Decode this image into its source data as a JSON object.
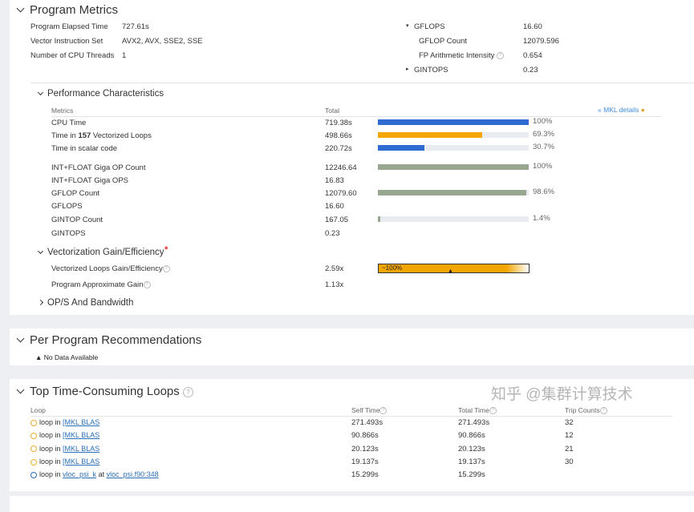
{
  "program_metrics": {
    "title": "Program Metrics",
    "left": [
      {
        "label": "Program Elapsed Time",
        "value": "727.61s"
      },
      {
        "label": "Vector Instruction Set",
        "value": "AVX2, AVX, SSE2, SSE"
      },
      {
        "label": "Number of CPU Threads",
        "value": "1"
      }
    ],
    "right": [
      {
        "label": "GFLOPS",
        "value": "16.60"
      },
      {
        "label": "GFLOP Count",
        "value": "12079.596"
      },
      {
        "label": "FP Arithmetic Intensity",
        "value": "0.654"
      },
      {
        "label": "GINTOPS",
        "value": "0.23"
      }
    ]
  },
  "performance": {
    "title": "Performance Characteristics",
    "col_metrics": "Metrics",
    "col_total": "Total",
    "mkl_link": "MKL details",
    "rows": [
      {
        "pre": "CPU Time",
        "bold": "",
        "post": "",
        "total": "719.38s",
        "pct": "100%",
        "fill": 100,
        "color": "#2f6bd1"
      },
      {
        "pre": "Time in ",
        "bold": "157",
        "post": " Vectorized Loops",
        "total": "498.66s",
        "pct": "69.3%",
        "fill": 69.3,
        "color": "#f5a500"
      },
      {
        "pre": "Time in scalar code",
        "bold": "",
        "post": "",
        "total": "220.72s",
        "pct": "30.7%",
        "fill": 30.7,
        "color": "#2f6bd1"
      },
      {
        "pre": "INT+FLOAT Giga OP Count",
        "bold": "",
        "post": "",
        "total": "12246.64",
        "pct": "100%",
        "fill": 100,
        "color": "#98a78f"
      },
      {
        "pre": "INT+FLOAT Giga OPS",
        "bold": "",
        "post": "",
        "total": "16.83",
        "pct": "",
        "fill": null,
        "color": ""
      },
      {
        "pre": "GFLOP Count",
        "bold": "",
        "post": "",
        "total": "12079.60",
        "pct": "98.6%",
        "fill": 98.6,
        "color": "#98a78f"
      },
      {
        "pre": "GFLOPS",
        "bold": "",
        "post": "",
        "total": "16.60",
        "pct": "",
        "fill": null,
        "color": ""
      },
      {
        "pre": "GINTOP Count",
        "bold": "",
        "post": "",
        "total": "167.05",
        "pct": "1.4%",
        "fill": 1.4,
        "color": "#98a78f"
      },
      {
        "pre": "GINTOPS",
        "bold": "",
        "post": "",
        "total": "0.23",
        "pct": "",
        "fill": null,
        "color": ""
      }
    ]
  },
  "vectorization": {
    "title": "Vectorization Gain/Efficiency",
    "rows": [
      {
        "label": "Vectorized Loops Gain/Efficiency",
        "value": "2.59x",
        "bar_label": "~100%",
        "efficiency": 100
      },
      {
        "label": "Program Approximate Gain",
        "value": "1.13x"
      }
    ]
  },
  "ops_bandwidth": {
    "title": "OP/S And Bandwidth"
  },
  "recommendations": {
    "title": "Per Program Recommendations",
    "message": "No Data Available"
  },
  "loops": {
    "title": "Top Time-Consuming Loops",
    "columns": [
      "Loop",
      "Self Time",
      "Total Time",
      "Trip Counts"
    ],
    "rows": [
      {
        "prefix": "loop in ",
        "link": "[MKL BLAS",
        "at": "",
        "link2": "",
        "self": "271.493s",
        "total": "271.493s",
        "trips": "32",
        "icon_color": "#f0b030"
      },
      {
        "prefix": "loop in ",
        "link": "[MKL BLAS",
        "at": "",
        "link2": "",
        "self": "90.866s",
        "total": "90.866s",
        "trips": "12",
        "icon_color": "#f0b030"
      },
      {
        "prefix": "loop in ",
        "link": "[MKL BLAS",
        "at": "",
        "link2": "",
        "self": "20.123s",
        "total": "20.123s",
        "trips": "21",
        "icon_color": "#f0b030"
      },
      {
        "prefix": "loop in ",
        "link": "[MKL BLAS",
        "at": "",
        "link2": "",
        "self": "19.137s",
        "total": "19.137s",
        "trips": "30",
        "icon_color": "#f0b030"
      },
      {
        "prefix": "loop in ",
        "link": "vloc_psi_k",
        "at": " at ",
        "link2": "vloc_psi.f90:348",
        "self": "15.299s",
        "total": "15.299s",
        "trips": "",
        "icon_color": "#2a6fb8"
      }
    ]
  },
  "watermark": "知乎 @集群计算技术"
}
